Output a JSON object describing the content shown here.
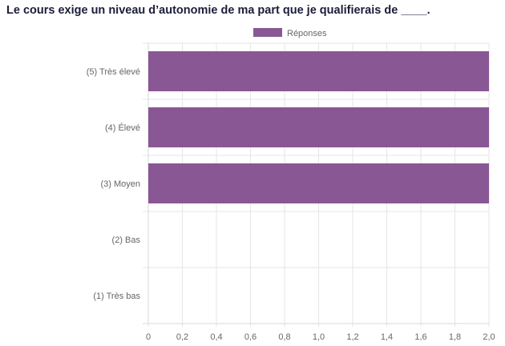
{
  "chart_data": {
    "type": "bar",
    "orientation": "horizontal",
    "title": "Le cours exige un niveau d’autonomie de ma part que je qualifierais de ____.",
    "categories": [
      "(5) Très élevé",
      "(4) Élevé",
      "(3) Moyen",
      "(2) Bas",
      "(1) Très bas"
    ],
    "series": [
      {
        "name": "Réponses",
        "values": [
          2,
          2,
          2,
          0,
          0
        ],
        "color": "#8a5795"
      }
    ],
    "xlim": [
      0,
      2
    ],
    "xticks": [
      "0",
      "0,2",
      "0,4",
      "0,6",
      "0,8",
      "1,0",
      "1,2",
      "1,4",
      "1,6",
      "1,8",
      "2,0"
    ],
    "grid": true,
    "legend": "top-center"
  }
}
